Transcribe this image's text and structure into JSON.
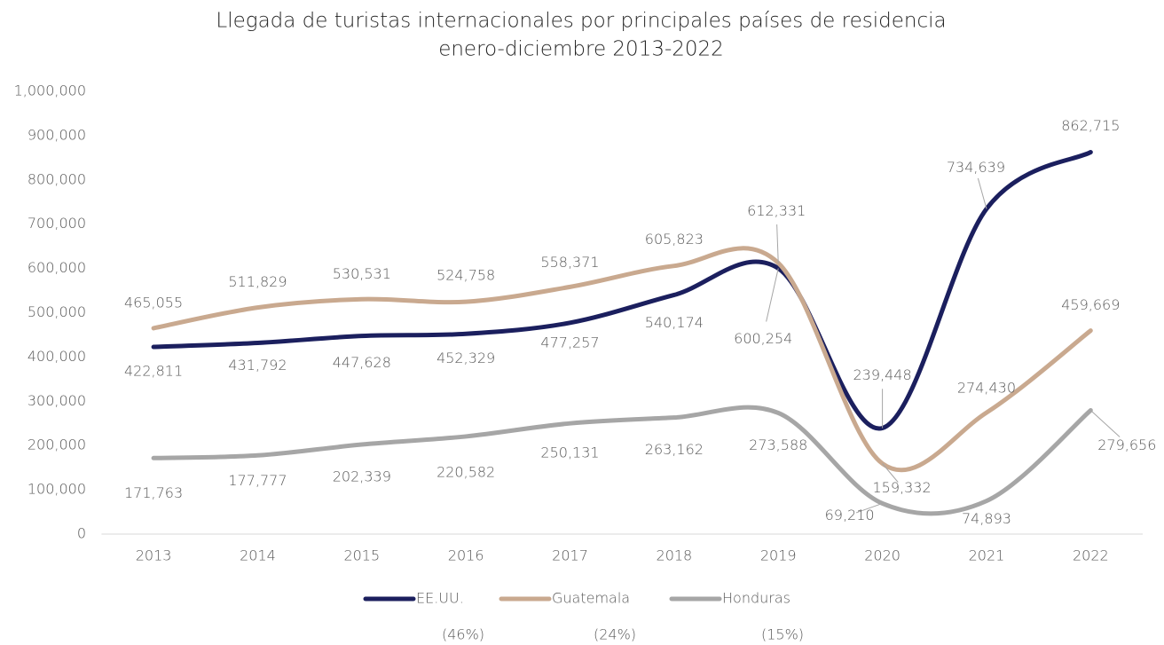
{
  "chart_data": {
    "type": "line",
    "title": "Llegada de turistas internacionales por principales países de residencia",
    "subtitle": "enero-diciembre 2013-2022",
    "categories": [
      "2013",
      "2014",
      "2015",
      "2016",
      "2017",
      "2018",
      "2019",
      "2020",
      "2021",
      "2022"
    ],
    "ylim": [
      0,
      1000000
    ],
    "yticks": [
      0,
      {
        "value": 100000,
        "label": "100,000"
      },
      {
        "value": 200000,
        "label": "200,000"
      },
      {
        "value": 300000,
        "label": "300,000"
      },
      {
        "value": 400000,
        "label": "400,000"
      },
      {
        "value": 500000,
        "label": "500,000"
      },
      {
        "value": 600000,
        "label": "600,000"
      },
      {
        "value": 700000,
        "label": "700,000"
      },
      {
        "value": 800000,
        "label": "800,000"
      },
      {
        "value": 900000,
        "label": "900,000"
      },
      {
        "value": 1000000,
        "label": "1,000,000"
      }
    ],
    "grid": false,
    "smooth": true,
    "legend": "bottom",
    "series": [
      {
        "name": "EE.UU.",
        "share": "(46%)",
        "color": "#1b1f5e",
        "values": [
          422811,
          431792,
          447628,
          452329,
          477257,
          540174,
          600254,
          239448,
          734639,
          862715
        ],
        "value_labels": [
          "422,811",
          "431,792",
          "447,628",
          "452,329",
          "477,257",
          "540,174",
          "600,254",
          "239,448",
          "734,639",
          "862,715"
        ]
      },
      {
        "name": "Guatemala",
        "share": "(24%)",
        "color": "#c9a98f",
        "values": [
          465055,
          511829,
          530531,
          524758,
          558371,
          605823,
          612331,
          159332,
          274430,
          459669
        ],
        "value_labels": [
          "465,055",
          "511,829",
          "530,531",
          "524,758",
          "558,371",
          "605,823",
          "612,331",
          "159,332",
          "274,430",
          "459,669"
        ]
      },
      {
        "name": "Honduras",
        "share": "(15%)",
        "color": "#a6a6a6",
        "values": [
          171763,
          177777,
          202339,
          220582,
          250131,
          263162,
          273588,
          69210,
          74893,
          279656
        ],
        "value_labels": [
          "171,763",
          "177,777",
          "202,339",
          "220,582",
          "250,131",
          "263,162",
          "273,588",
          "69,210",
          "74,893",
          "279,656"
        ]
      }
    ]
  }
}
